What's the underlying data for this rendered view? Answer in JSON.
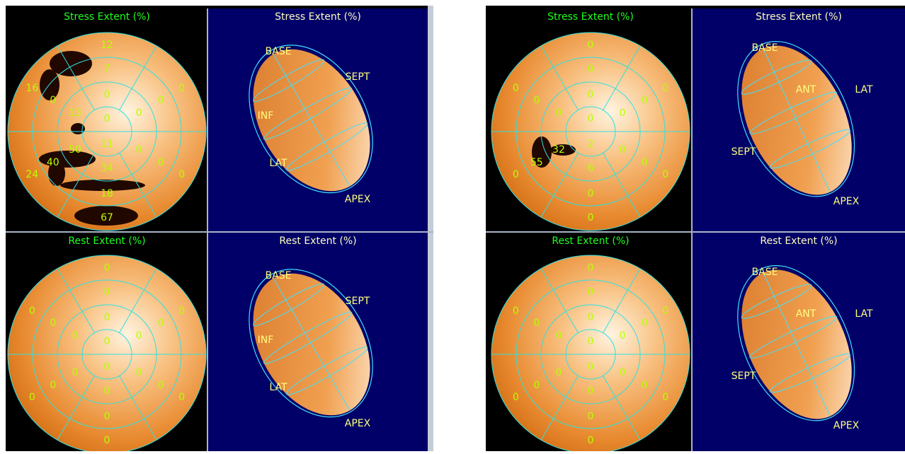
{
  "panels": [
    {
      "maps": [
        {
          "polar_title": "Stress Extent (%)",
          "center": [
            0,
            11
          ],
          "rings": [
            [
              0,
              0,
              0,
              34,
              50,
              13
            ],
            [
              7,
              0,
              0,
              18,
              40,
              0
            ],
            [
              12,
              0,
              0,
              67,
              24,
              16
            ]
          ],
          "view_title": "Stress Extent (%)",
          "view_labels": [
            "BASE",
            "SEPT",
            "INF",
            "LAT",
            "APEX"
          ]
        },
        {
          "polar_title": "Rest Extent (%)",
          "center": [
            0,
            0
          ],
          "rings": [
            [
              0,
              0,
              0,
              0,
              0,
              0
            ],
            [
              0,
              0,
              0,
              0,
              0,
              0
            ],
            [
              0,
              0,
              0,
              0,
              0,
              0
            ]
          ],
          "view_title": "Rest Extent (%)",
          "view_labels": [
            "BASE",
            "SEPT",
            "INF",
            "LAT",
            "APEX"
          ]
        }
      ]
    },
    {
      "maps": [
        {
          "polar_title": "Stress Extent (%)",
          "center": [
            0,
            2
          ],
          "rings": [
            [
              0,
              0,
              0,
              6,
              32,
              0
            ],
            [
              0,
              0,
              0,
              0,
              55,
              0
            ],
            [
              0,
              0,
              0,
              0,
              0,
              0
            ]
          ],
          "view_title": "Stress Extent (%)",
          "view_labels": [
            "BASE",
            "ANT",
            "LAT",
            "SEPT",
            "APEX"
          ]
        },
        {
          "polar_title": "Rest Extent (%)",
          "center": [
            0,
            0
          ],
          "rings": [
            [
              0,
              0,
              0,
              0,
              0,
              0
            ],
            [
              0,
              0,
              0,
              0,
              0,
              0
            ],
            [
              0,
              0,
              0,
              0,
              0,
              0
            ]
          ],
          "view_title": "Rest Extent (%)",
          "view_labels": [
            "BASE",
            "ANT",
            "LAT",
            "SEPT",
            "APEX"
          ]
        }
      ]
    }
  ]
}
